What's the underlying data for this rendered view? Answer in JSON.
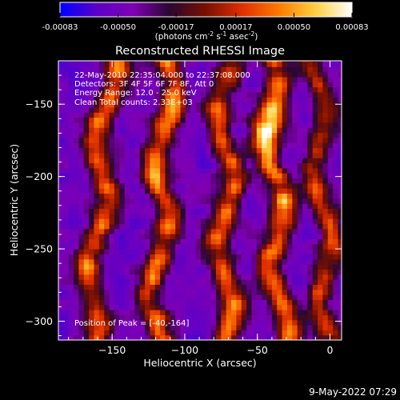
{
  "colorbar": {
    "tick_labels": [
      "-0.00083",
      "-0.00050",
      "-0.00017",
      "0.00017",
      "0.00050",
      "0.00083"
    ],
    "tick_values": [
      -0.00083,
      -0.0005,
      -0.00017,
      0.00017,
      0.0005,
      0.00083
    ],
    "range": [
      -0.00083,
      0.00083
    ],
    "units_text": "(photons cm",
    "units_exp1": "-2",
    "units_mid": " s",
    "units_exp2": "-1",
    "units_mid2": " asec",
    "units_exp3": "-2",
    "units_end": ")",
    "colors": [
      "#0000ff",
      "#5a00c8",
      "#8000b4",
      "#2a0830",
      "#781000",
      "#e03000",
      "#ff7a00",
      "#ffd040",
      "#ffffff"
    ]
  },
  "chart_data": {
    "type": "heatmap",
    "title": "Reconstructed RHESSI Image",
    "xlabel": "Heliocentric X (arcsec)",
    "ylabel": "Heliocentric Y (arcsec)",
    "xlim": [
      -187,
      8
    ],
    "ylim": [
      -313,
      -120
    ],
    "x_ticks": [
      -150,
      -100,
      -50,
      0
    ],
    "x_tick_labels": [
      "−150",
      "−100",
      "−50",
      "0"
    ],
    "y_ticks": [
      -300,
      -250,
      -200,
      -150
    ],
    "y_tick_labels": [
      "−300",
      "−250",
      "−200",
      "−150"
    ],
    "grid": false,
    "annotations": [
      "22-May-2010 22:35:04.000 to 22:37:08.000",
      "Detectors: 3F 4F 5F 6F 7F 8F, Att 0",
      "Energy Range: 12.0 - 25.0 keV",
      "Clean    Total counts: 2.33E+03"
    ],
    "peak_label": "Position of Peak = [-40,-164]",
    "peak": [
      -40,
      -164
    ],
    "bright_streaks": [
      {
        "x_bottom": -165,
        "x_top": -152,
        "intensity": 0.9
      },
      {
        "x_bottom": -120,
        "x_top": -112,
        "intensity": 0.95
      },
      {
        "x_bottom": -72,
        "x_top": -72,
        "intensity": 0.85
      },
      {
        "x_bottom": -33,
        "x_top": -42,
        "intensity": 1.0
      },
      {
        "x_bottom": 0,
        "x_top": -10,
        "intensity": 0.7
      }
    ]
  },
  "timestamp": "9-May-2022 07:29"
}
